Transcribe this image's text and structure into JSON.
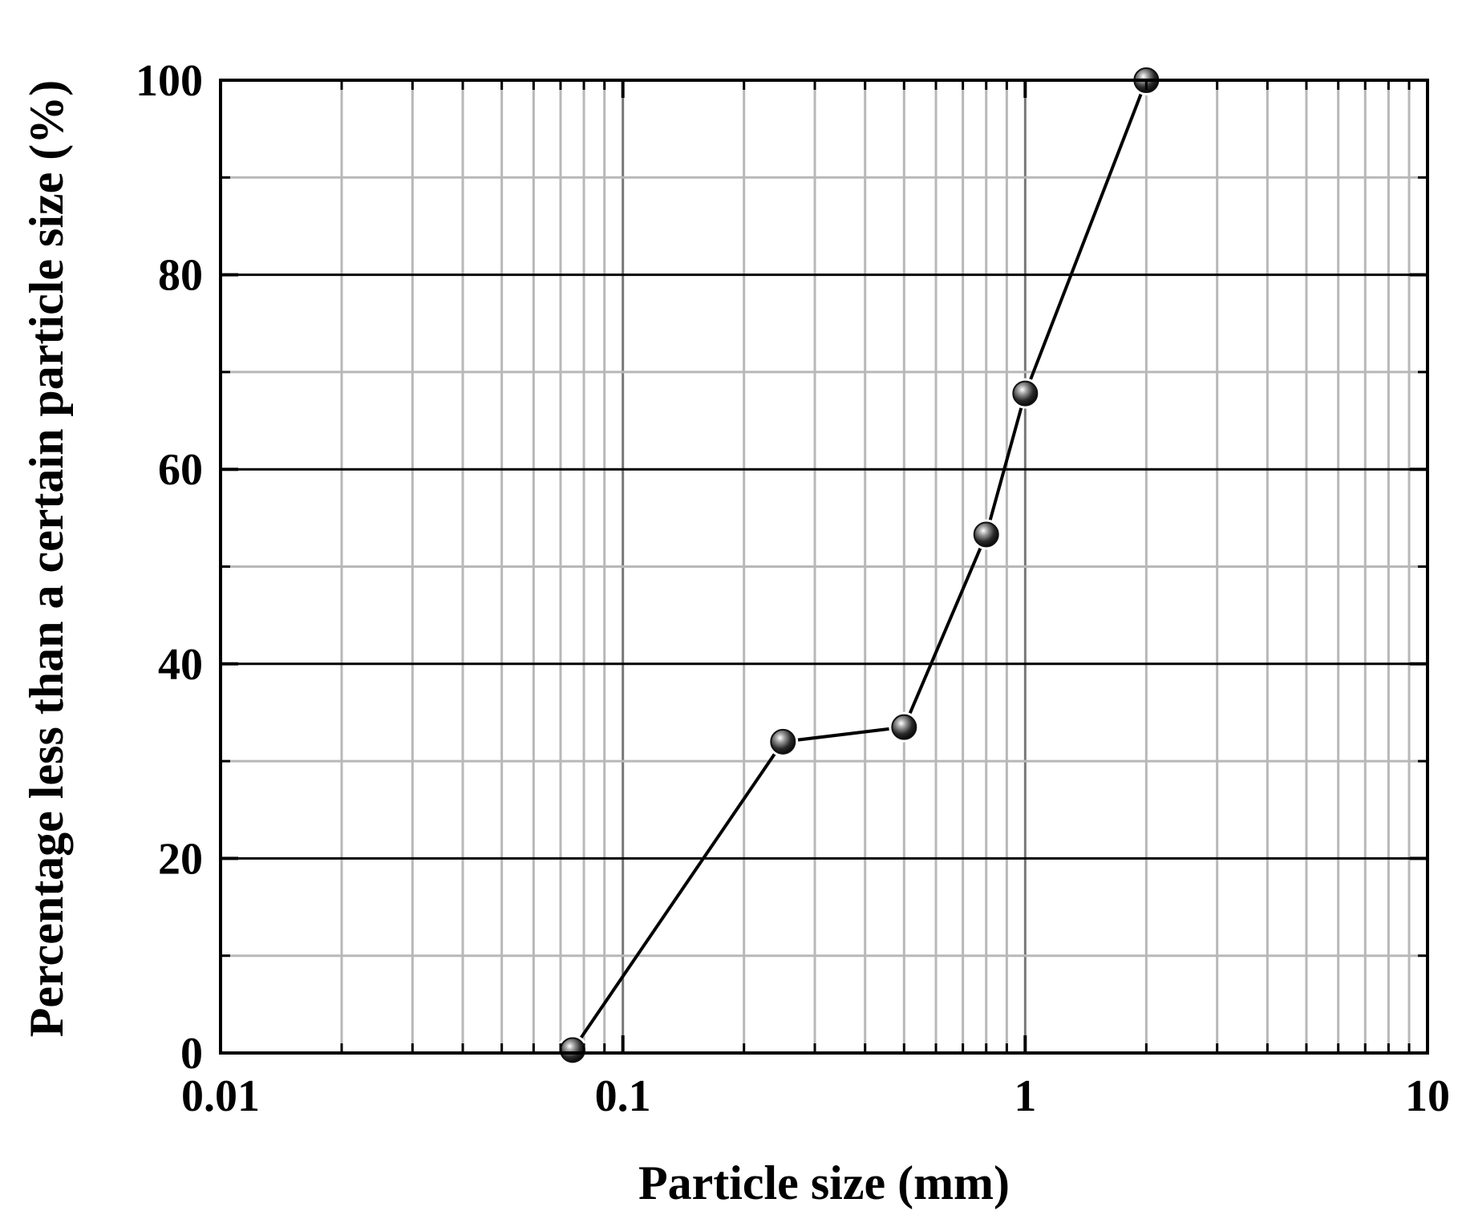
{
  "chart_data": {
    "type": "line",
    "xlabel": "Particle size (mm)",
    "ylabel": "Percentage less than a certain particle size (%)",
    "x_scale": "log",
    "xlim": [
      0.01,
      10
    ],
    "ylim": [
      0,
      100
    ],
    "x_ticks": [
      0.01,
      0.1,
      1,
      10
    ],
    "x_tick_labels": [
      "0.01",
      "0.1",
      "1",
      "10"
    ],
    "y_ticks": [
      0,
      20,
      40,
      60,
      80,
      100
    ],
    "y_tick_labels": [
      "0",
      "20",
      "40",
      "60",
      "80",
      "100"
    ],
    "grid": true,
    "series": [
      {
        "x": [
          0.075,
          0.25,
          0.5,
          0.8,
          1,
          2
        ],
        "y": [
          0.3,
          32,
          33.5,
          53.3,
          67.8,
          100
        ]
      }
    ],
    "colors": {
      "line": "#000000",
      "marker": "#111111",
      "major_grid": "#000000",
      "minor_grid": "#b8b8b8",
      "decade_grid": "#777777"
    }
  }
}
